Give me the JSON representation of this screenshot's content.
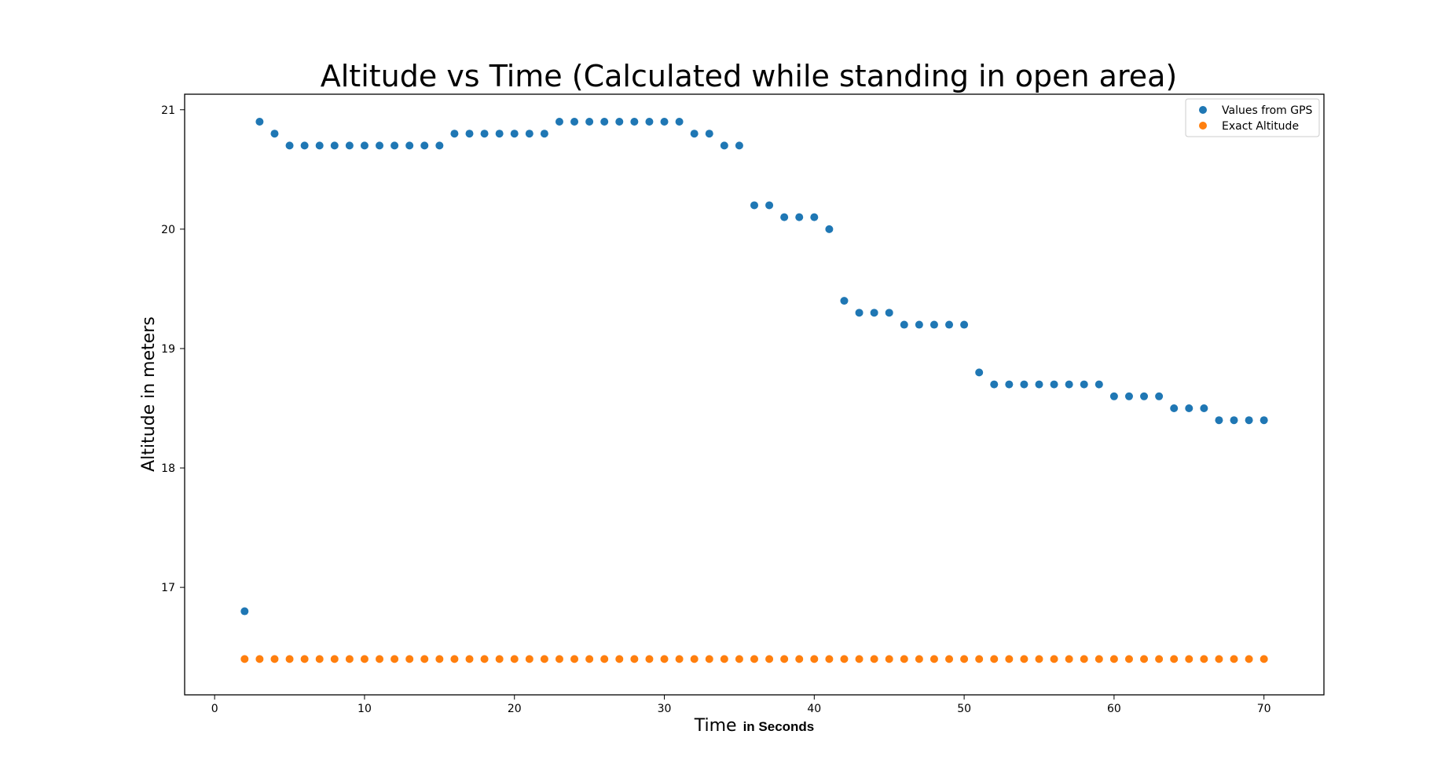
{
  "chart_data": {
    "type": "scatter",
    "title": "Altitude vs Time (Calculated while standing in open area)",
    "xlabel_main": "Time",
    "xlabel_suffix": "in Seconds",
    "ylabel": "Altitude in meters",
    "xlim": [
      -2,
      74
    ],
    "ylim": [
      16.1,
      21.13
    ],
    "x_ticks": [
      0,
      10,
      20,
      30,
      40,
      50,
      60,
      70
    ],
    "y_ticks": [
      17,
      18,
      19,
      20,
      21
    ],
    "grid": false,
    "legend_position": "top-right",
    "series": [
      {
        "name": "Values from GPS",
        "color": "#1f77b4",
        "x": [
          2,
          3,
          4,
          5,
          6,
          7,
          8,
          9,
          10,
          11,
          12,
          13,
          14,
          15,
          16,
          17,
          18,
          19,
          20,
          21,
          22,
          23,
          24,
          25,
          26,
          27,
          28,
          29,
          30,
          31,
          32,
          33,
          34,
          35,
          36,
          37,
          38,
          39,
          40,
          41,
          42,
          43,
          44,
          45,
          46,
          47,
          48,
          49,
          50,
          51,
          52,
          53,
          54,
          55,
          56,
          57,
          58,
          59,
          60,
          61,
          62,
          63,
          64,
          65,
          66,
          67,
          68,
          69,
          70
        ],
        "y": [
          16.8,
          20.9,
          20.8,
          20.7,
          20.7,
          20.7,
          20.7,
          20.7,
          20.7,
          20.7,
          20.7,
          20.7,
          20.7,
          20.7,
          20.8,
          20.8,
          20.8,
          20.8,
          20.8,
          20.8,
          20.8,
          20.9,
          20.9,
          20.9,
          20.9,
          20.9,
          20.9,
          20.9,
          20.9,
          20.9,
          20.8,
          20.8,
          20.7,
          20.7,
          20.2,
          20.2,
          20.1,
          20.1,
          20.1,
          20.0,
          19.4,
          19.3,
          19.3,
          19.3,
          19.2,
          19.2,
          19.2,
          19.2,
          19.2,
          18.8,
          18.7,
          18.7,
          18.7,
          18.7,
          18.7,
          18.7,
          18.7,
          18.7,
          18.6,
          18.6,
          18.6,
          18.6,
          18.5,
          18.5,
          18.5,
          18.4,
          18.4,
          18.4,
          18.4
        ]
      },
      {
        "name": "Exact Altitude",
        "color": "#ff7f0e",
        "x": [
          2,
          3,
          4,
          5,
          6,
          7,
          8,
          9,
          10,
          11,
          12,
          13,
          14,
          15,
          16,
          17,
          18,
          19,
          20,
          21,
          22,
          23,
          24,
          25,
          26,
          27,
          28,
          29,
          30,
          31,
          32,
          33,
          34,
          35,
          36,
          37,
          38,
          39,
          40,
          41,
          42,
          43,
          44,
          45,
          46,
          47,
          48,
          49,
          50,
          51,
          52,
          53,
          54,
          55,
          56,
          57,
          58,
          59,
          60,
          61,
          62,
          63,
          64,
          65,
          66,
          67,
          68,
          69,
          70
        ],
        "y": [
          16.4,
          16.4,
          16.4,
          16.4,
          16.4,
          16.4,
          16.4,
          16.4,
          16.4,
          16.4,
          16.4,
          16.4,
          16.4,
          16.4,
          16.4,
          16.4,
          16.4,
          16.4,
          16.4,
          16.4,
          16.4,
          16.4,
          16.4,
          16.4,
          16.4,
          16.4,
          16.4,
          16.4,
          16.4,
          16.4,
          16.4,
          16.4,
          16.4,
          16.4,
          16.4,
          16.4,
          16.4,
          16.4,
          16.4,
          16.4,
          16.4,
          16.4,
          16.4,
          16.4,
          16.4,
          16.4,
          16.4,
          16.4,
          16.4,
          16.4,
          16.4,
          16.4,
          16.4,
          16.4,
          16.4,
          16.4,
          16.4,
          16.4,
          16.4,
          16.4,
          16.4,
          16.4,
          16.4,
          16.4,
          16.4,
          16.4,
          16.4,
          16.4,
          16.4
        ]
      }
    ]
  }
}
